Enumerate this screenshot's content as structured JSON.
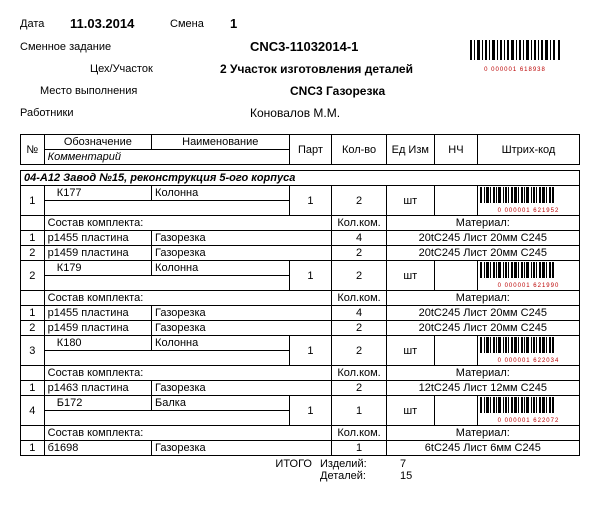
{
  "header": {
    "date_label": "Дата",
    "date_value": "11.03.2014",
    "shift_label": "Смена",
    "shift_value": "1",
    "task_label": "Сменное задание",
    "task_value": "CNC3-11032014-1",
    "area_label": "Цех/Участок",
    "area_value": "2 Участок изготовления деталей",
    "place_label": "Место выполнения",
    "place_value": "CNC3 Газорезка",
    "workers_label": "Работники",
    "workers_value": "Коновалов М.М.",
    "top_barcode_num": "0 000001 618938"
  },
  "columns": {
    "num": "№",
    "designation": "Обозначение",
    "name": "Наименование",
    "comment": "Комментарий",
    "part": "Парт",
    "qty": "Кол-во",
    "unit": "Ед Изм",
    "nch": "НЧ",
    "barcode": "Штрих-код"
  },
  "group_title": "04-А12 Завод №15, реконструкция 5-ого корпуса",
  "kit_label": "Состав комплекта:",
  "kit_qty_label": "Кол.ком.",
  "material_label": "Материал:",
  "items": [
    {
      "n": "1",
      "code": "К177",
      "name": "Колонна",
      "part": "1",
      "qty": "2",
      "unit": "шт",
      "barcode_num": "0 000001 621952",
      "kit": [
        {
          "n": "1",
          "code": "р1455 пластина",
          "op": "Газорезка",
          "qty": "4",
          "mat": "20tC245 Лист 20мм С245"
        },
        {
          "n": "2",
          "code": "р1459 пластина",
          "op": "Газорезка",
          "qty": "2",
          "mat": "20tC245 Лист 20мм С245"
        }
      ]
    },
    {
      "n": "2",
      "code": "К179",
      "name": "Колонна",
      "part": "1",
      "qty": "2",
      "unit": "шт",
      "barcode_num": "0 000001 621990",
      "kit": [
        {
          "n": "1",
          "code": "р1455 пластина",
          "op": "Газорезка",
          "qty": "4",
          "mat": "20tC245 Лист 20мм С245"
        },
        {
          "n": "2",
          "code": "р1459 пластина",
          "op": "Газорезка",
          "qty": "2",
          "mat": "20tC245 Лист 20мм С245"
        }
      ]
    },
    {
      "n": "3",
      "code": "К180",
      "name": "Колонна",
      "part": "1",
      "qty": "2",
      "unit": "шт",
      "barcode_num": "0 000001 622034",
      "kit": [
        {
          "n": "1",
          "code": "р1463 пластина",
          "op": "Газорезка",
          "qty": "2",
          "mat": "12tC245 Лист 12мм С245"
        }
      ]
    },
    {
      "n": "4",
      "code": "Б172",
      "name": "Балка",
      "part": "1",
      "qty": "1",
      "unit": "шт",
      "barcode_num": "0 000001 622072",
      "kit": [
        {
          "n": "1",
          "code": "б1698",
          "op": "Газорезка",
          "qty": "1",
          "mat": "6tC245 Лист 6мм С245"
        }
      ]
    }
  ],
  "footer": {
    "total_label": "ИТОГО",
    "items_label": "Изделий:",
    "items_value": "7",
    "details_label": "Деталей:",
    "details_value": "15"
  },
  "colors": {
    "barcode_num": "#b00000"
  }
}
